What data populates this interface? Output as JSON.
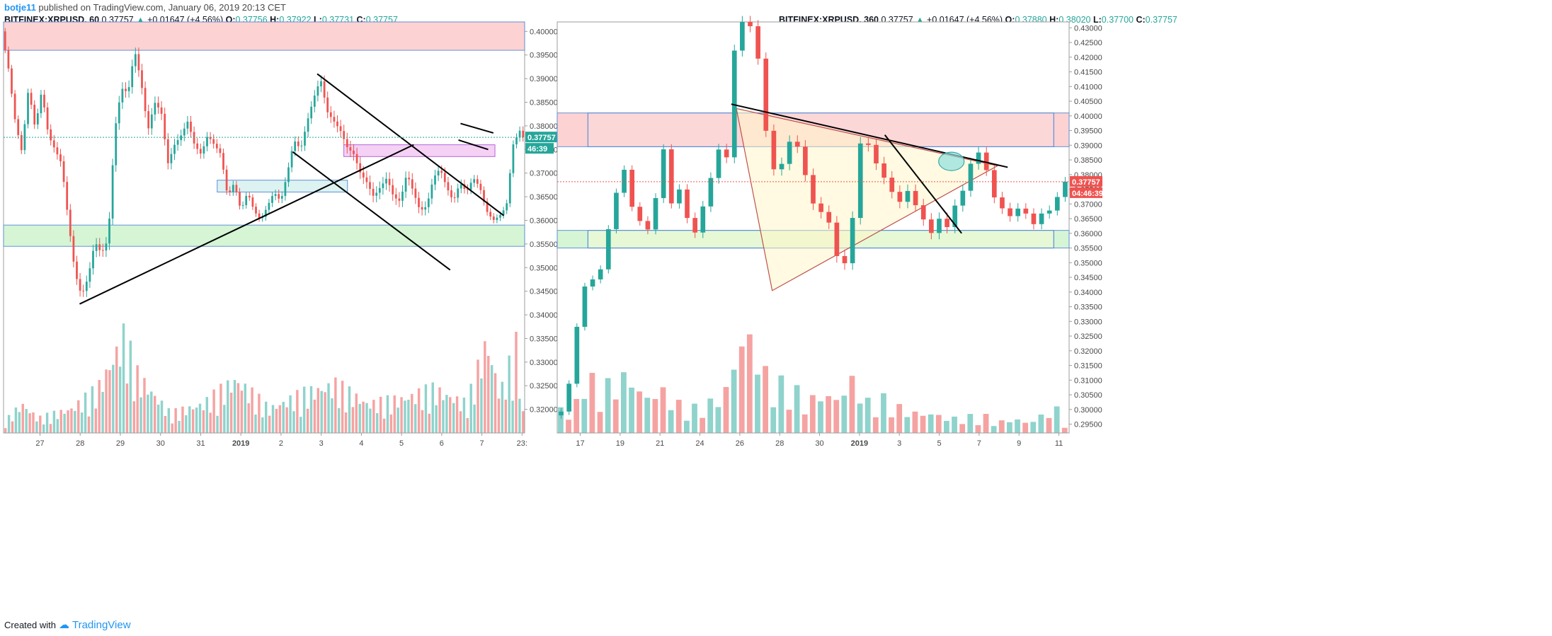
{
  "header": {
    "user": "botje11",
    "text": " published on TradingView.com, January 06, 2019 20:13 CET"
  },
  "footer": {
    "created_with": "Created with",
    "brand": "TradingView"
  },
  "colors": {
    "up": "#26a69a",
    "down": "#ef5350",
    "upVol": "#8fd3cc",
    "downVol": "#f5a3a2",
    "resistZone": "#fdd0d0",
    "supportZone": "#d3f5d3",
    "pinkBox": "#f2c6f2",
    "blueBorder": "#5b8ed8",
    "priceTag": "#26a69a",
    "priceTag2": "#ef5350"
  },
  "chart_data": [
    {
      "type": "candlestick",
      "symbol": "BITFINEX:XRPUSD",
      "interval": "60",
      "last": "0.37757",
      "change": "+0.01647 (+4.56%)",
      "ohlc": {
        "O": "0.37756",
        "H": "0.37922",
        "L": "0.37731",
        "C": "0.37757"
      },
      "price_label": "0.37757",
      "countdown": "46:39",
      "ylim": [
        0.315,
        0.402
      ],
      "y_ticks": [
        "0.40000",
        "0.39500",
        "0.39000",
        "0.38500",
        "0.38000",
        "0.37500",
        "0.37000",
        "0.36500",
        "0.36000",
        "0.35500",
        "0.35000",
        "0.34500",
        "0.34000",
        "0.33500",
        "0.33000",
        "0.32500",
        "0.32000"
      ],
      "x_ticks": [
        "27",
        "28",
        "29",
        "30",
        "31",
        "2019",
        "2",
        "3",
        "4",
        "5",
        "6",
        "7",
        "23:"
      ],
      "candles_path": [
        [
          0,
          0.4
        ],
        [
          2,
          0.392
        ],
        [
          4,
          0.381
        ],
        [
          6,
          0.3745
        ],
        [
          8,
          0.388
        ],
        [
          10,
          0.3795
        ],
        [
          12,
          0.3875
        ],
        [
          14,
          0.378
        ],
        [
          16,
          0.375
        ],
        [
          18,
          0.372
        ],
        [
          20,
          0.36
        ],
        [
          22,
          0.349
        ],
        [
          24,
          0.344
        ],
        [
          26,
          0.348
        ],
        [
          28,
          0.3555
        ],
        [
          30,
          0.353
        ],
        [
          32,
          0.356
        ],
        [
          34,
          0.379
        ],
        [
          36,
          0.388
        ],
        [
          38,
          0.387
        ],
        [
          40,
          0.396
        ],
        [
          42,
          0.389
        ],
        [
          44,
          0.379
        ],
        [
          46,
          0.385
        ],
        [
          48,
          0.383
        ],
        [
          50,
          0.372
        ],
        [
          52,
          0.376
        ],
        [
          54,
          0.378
        ],
        [
          56,
          0.381
        ],
        [
          58,
          0.376
        ],
        [
          60,
          0.374
        ],
        [
          62,
          0.378
        ],
        [
          64,
          0.376
        ],
        [
          66,
          0.374
        ],
        [
          68,
          0.365
        ],
        [
          70,
          0.368
        ],
        [
          72,
          0.362
        ],
        [
          74,
          0.366
        ],
        [
          76,
          0.362
        ],
        [
          78,
          0.36
        ],
        [
          80,
          0.363
        ],
        [
          82,
          0.366
        ],
        [
          84,
          0.364
        ],
        [
          86,
          0.37
        ],
        [
          88,
          0.377
        ],
        [
          90,
          0.375
        ],
        [
          92,
          0.381
        ],
        [
          94,
          0.386
        ],
        [
          96,
          0.39
        ],
        [
          98,
          0.383
        ],
        [
          100,
          0.381
        ],
        [
          102,
          0.379
        ],
        [
          104,
          0.3755
        ],
        [
          106,
          0.374
        ],
        [
          108,
          0.37
        ],
        [
          110,
          0.368
        ],
        [
          112,
          0.365
        ],
        [
          114,
          0.367
        ],
        [
          116,
          0.369
        ],
        [
          118,
          0.365
        ],
        [
          120,
          0.364
        ],
        [
          122,
          0.37
        ],
        [
          124,
          0.366
        ],
        [
          126,
          0.362
        ],
        [
          128,
          0.363
        ],
        [
          130,
          0.369
        ],
        [
          132,
          0.371
        ],
        [
          134,
          0.367
        ],
        [
          136,
          0.364
        ],
        [
          138,
          0.368
        ],
        [
          140,
          0.366
        ],
        [
          142,
          0.369
        ],
        [
          144,
          0.367
        ],
        [
          146,
          0.362
        ],
        [
          148,
          0.36
        ],
        [
          150,
          0.361
        ],
        [
          152,
          0.363
        ],
        [
          154,
          0.376
        ],
        [
          156,
          0.379
        ],
        [
          157,
          0.3776
        ]
      ],
      "volume_path": [
        [
          0,
          0.12
        ],
        [
          5,
          0.3
        ],
        [
          10,
          0.15
        ],
        [
          20,
          0.25
        ],
        [
          28,
          0.45
        ],
        [
          36,
          1.0
        ],
        [
          40,
          0.6
        ],
        [
          50,
          0.2
        ],
        [
          60,
          0.3
        ],
        [
          70,
          0.55
        ],
        [
          80,
          0.25
        ],
        [
          90,
          0.4
        ],
        [
          100,
          0.5
        ],
        [
          110,
          0.3
        ],
        [
          120,
          0.35
        ],
        [
          130,
          0.45
        ],
        [
          140,
          0.3
        ],
        [
          146,
          0.95
        ],
        [
          150,
          0.4
        ],
        [
          155,
          0.9
        ],
        [
          157,
          0.2
        ]
      ],
      "zones": [
        {
          "name": "resistance-zone",
          "from": 0.396,
          "to": 0.402
        },
        {
          "name": "support-zone",
          "from": 0.3545,
          "to": 0.359
        }
      ],
      "boxes": [
        {
          "name": "pink-box",
          "x0": 0.653,
          "x1": 0.943,
          "from": 0.3735,
          "to": 0.376
        },
        {
          "name": "blue-box",
          "x0": 0.41,
          "x1": 0.66,
          "from": 0.366,
          "to": 0.3685
        }
      ],
      "lines": [
        {
          "x0": 0.146,
          "y0": 0.3423,
          "x1": 0.787,
          "y1": 0.376
        },
        {
          "x0": 0.602,
          "y0": 0.391,
          "x1": 0.96,
          "y1": 0.361
        },
        {
          "x0": 0.555,
          "y0": 0.3745,
          "x1": 0.857,
          "y1": 0.3495
        },
        {
          "x0": 0.877,
          "y0": 0.3805,
          "x1": 0.94,
          "y1": 0.3785
        },
        {
          "x0": 0.873,
          "y0": 0.377,
          "x1": 0.93,
          "y1": 0.375
        }
      ]
    },
    {
      "type": "candlestick",
      "symbol": "BITFINEX:XRPUSD",
      "interval": "360",
      "last": "0.37757",
      "change": "+0.01647 (+4.56%)",
      "ohlc": {
        "O": "0.37880",
        "H": "0.38020",
        "L": "0.37700",
        "C": "0.37757"
      },
      "price_label": "0.37757",
      "countdown": "04:46:39",
      "ylim": [
        0.292,
        0.432
      ],
      "y_ticks": [
        "0.43000",
        "0.42500",
        "0.42000",
        "0.41500",
        "0.41000",
        "0.40500",
        "0.40000",
        "0.39500",
        "0.39000",
        "0.38500",
        "0.38000",
        "0.37500",
        "0.37000",
        "0.36500",
        "0.36000",
        "0.35500",
        "0.35000",
        "0.34500",
        "0.34000",
        "0.33500",
        "0.33000",
        "0.32500",
        "0.32000",
        "0.31500",
        "0.31000",
        "0.30500",
        "0.30000",
        "0.29500"
      ],
      "x_ticks": [
        "17",
        "19",
        "21",
        "24",
        "26",
        "28",
        "30",
        "2019",
        "3",
        "5",
        "7",
        "9",
        "11"
      ],
      "candles_path": [
        [
          0,
          0.298
        ],
        [
          3,
          0.3
        ],
        [
          5,
          0.32
        ],
        [
          7,
          0.34
        ],
        [
          9,
          0.345
        ],
        [
          11,
          0.343
        ],
        [
          13,
          0.358
        ],
        [
          15,
          0.37
        ],
        [
          17,
          0.385
        ],
        [
          19,
          0.37
        ],
        [
          21,
          0.365
        ],
        [
          23,
          0.36
        ],
        [
          25,
          0.37
        ],
        [
          27,
          0.39
        ],
        [
          29,
          0.37
        ],
        [
          31,
          0.375
        ],
        [
          33,
          0.365
        ],
        [
          35,
          0.36
        ],
        [
          37,
          0.37
        ],
        [
          39,
          0.38
        ],
        [
          41,
          0.39
        ],
        [
          43,
          0.385
        ],
        [
          45,
          0.432
        ],
        [
          47,
          0.432
        ],
        [
          49,
          0.43
        ],
        [
          51,
          0.415
        ],
        [
          53,
          0.385
        ],
        [
          55,
          0.38
        ],
        [
          57,
          0.386
        ],
        [
          59,
          0.395
        ],
        [
          61,
          0.385
        ],
        [
          63,
          0.375
        ],
        [
          65,
          0.365
        ],
        [
          67,
          0.37
        ],
        [
          69,
          0.355
        ],
        [
          71,
          0.348
        ],
        [
          73,
          0.353
        ],
        [
          75,
          0.39
        ],
        [
          77,
          0.392
        ],
        [
          79,
          0.385
        ],
        [
          81,
          0.38
        ],
        [
          83,
          0.375
        ],
        [
          85,
          0.37
        ],
        [
          87,
          0.375
        ],
        [
          89,
          0.37
        ],
        [
          91,
          0.365
        ],
        [
          93,
          0.36
        ],
        [
          95,
          0.365
        ],
        [
          97,
          0.362
        ],
        [
          99,
          0.37
        ],
        [
          101,
          0.375
        ],
        [
          103,
          0.385
        ],
        [
          105,
          0.388
        ],
        [
          107,
          0.38
        ],
        [
          109,
          0.37
        ],
        [
          111,
          0.368
        ],
        [
          113,
          0.365
        ],
        [
          115,
          0.37
        ],
        [
          117,
          0.365
        ],
        [
          119,
          0.362
        ],
        [
          121,
          0.37
        ],
        [
          123,
          0.366
        ],
        [
          125,
          0.378
        ],
        [
          126,
          0.3776
        ]
      ],
      "volume_path": [
        [
          0,
          0.25
        ],
        [
          3,
          0.15
        ],
        [
          6,
          0.65
        ],
        [
          9,
          0.45
        ],
        [
          13,
          0.5
        ],
        [
          17,
          0.6
        ],
        [
          21,
          0.35
        ],
        [
          25,
          0.45
        ],
        [
          29,
          0.3
        ],
        [
          33,
          0.25
        ],
        [
          37,
          0.3
        ],
        [
          41,
          0.4
        ],
        [
          45,
          0.95
        ],
        [
          47,
          1.0
        ],
        [
          49,
          0.8
        ],
        [
          53,
          0.45
        ],
        [
          57,
          0.55
        ],
        [
          61,
          0.3
        ],
        [
          65,
          0.4
        ],
        [
          69,
          0.35
        ],
        [
          73,
          0.55
        ],
        [
          77,
          0.3
        ],
        [
          81,
          0.35
        ],
        [
          85,
          0.25
        ],
        [
          89,
          0.2
        ],
        [
          93,
          0.2
        ],
        [
          97,
          0.15
        ],
        [
          101,
          0.15
        ],
        [
          105,
          0.2
        ],
        [
          109,
          0.1
        ],
        [
          113,
          0.15
        ],
        [
          117,
          0.1
        ],
        [
          121,
          0.2
        ],
        [
          125,
          0.25
        ],
        [
          126,
          0.1
        ]
      ],
      "zones": [
        {
          "name": "resistance-zone",
          "from": 0.3895,
          "to": 0.401
        },
        {
          "name": "support-zone",
          "from": 0.355,
          "to": 0.361
        }
      ],
      "boxes": [],
      "lines": [
        {
          "x0": 0.34,
          "y0": 0.404,
          "x1": 0.88,
          "y1": 0.3825
        },
        {
          "x0": 0.64,
          "y0": 0.3935,
          "x1": 0.79,
          "y1": 0.36
        }
      ],
      "triangle": [
        [
          0.35,
          0.4025
        ],
        [
          0.42,
          0.3405
        ],
        [
          0.86,
          0.383
        ]
      ],
      "circle": {
        "x": 0.77,
        "y": 0.3845
      }
    }
  ]
}
